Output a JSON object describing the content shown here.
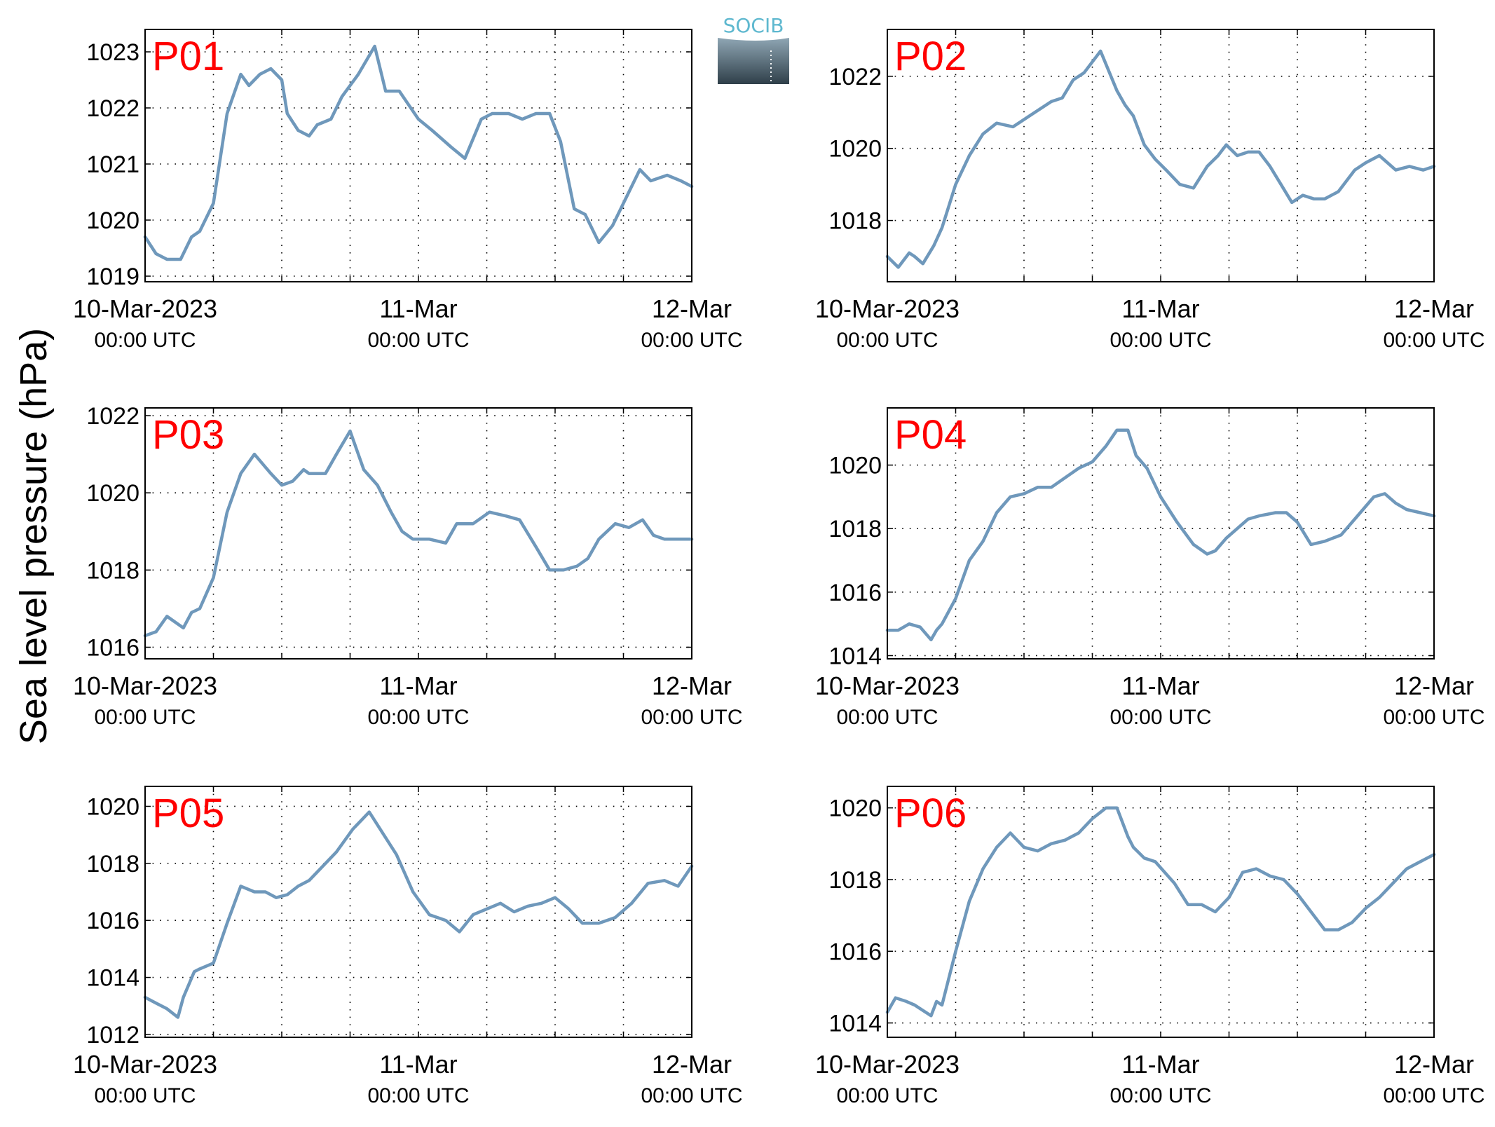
{
  "figure": {
    "ylabel": "Sea level pressure (hPa)",
    "logo_text": "SOCIB",
    "colors": {
      "line": "#6f98bb",
      "panel_label": "#ff0000",
      "axis": "#000000"
    }
  },
  "chart_data": [
    {
      "type": "line",
      "label": "P01",
      "ylim": [
        1018.9,
        1023.4
      ],
      "grid": true,
      "yticks": [
        1019,
        1020,
        1021,
        1022,
        1023
      ],
      "xlim": [
        0,
        2
      ],
      "xticks": [
        {
          "x": 0,
          "date": "10-Mar-2023",
          "time": "00:00 UTC"
        },
        {
          "x": 1,
          "date": "11-Mar",
          "time": "00:00 UTC"
        },
        {
          "x": 2,
          "date": "12-Mar",
          "time": "00:00 UTC"
        }
      ],
      "series": [
        {
          "x": [
            0,
            0.04,
            0.08,
            0.13,
            0.17,
            0.2,
            0.25,
            0.3,
            0.35,
            0.38,
            0.42,
            0.46,
            0.5,
            0.52,
            0.56,
            0.6,
            0.63,
            0.68,
            0.72,
            0.78,
            0.84,
            0.88,
            0.93,
            1.0,
            1.05,
            1.12,
            1.17,
            1.23,
            1.27,
            1.33,
            1.38,
            1.43,
            1.48,
            1.52,
            1.57,
            1.61,
            1.66,
            1.71,
            1.76,
            1.81,
            1.85,
            1.91,
            1.96,
            2.0
          ],
          "values": [
            1019.7,
            1019.4,
            1019.3,
            1019.3,
            1019.7,
            1019.8,
            1020.3,
            1021.9,
            1022.6,
            1022.4,
            1022.6,
            1022.7,
            1022.5,
            1021.9,
            1021.6,
            1021.5,
            1021.7,
            1021.8,
            1022.2,
            1022.6,
            1023.1,
            1022.3,
            1022.3,
            1021.8,
            1021.6,
            1021.3,
            1021.1,
            1021.8,
            1021.9,
            1021.9,
            1021.8,
            1021.9,
            1021.9,
            1021.4,
            1020.2,
            1020.1,
            1019.6,
            1019.9,
            1020.4,
            1020.9,
            1020.7,
            1020.8,
            1020.7,
            1020.6
          ]
        }
      ]
    },
    {
      "type": "line",
      "label": "P02",
      "ylim": [
        1016.3,
        1023.3
      ],
      "grid": true,
      "yticks": [
        1018,
        1020,
        1022
      ],
      "xlim": [
        0,
        2
      ],
      "xticks": [
        {
          "x": 0,
          "date": "10-Mar-2023",
          "time": "00:00 UTC"
        },
        {
          "x": 1,
          "date": "11-Mar",
          "time": "00:00 UTC"
        },
        {
          "x": 2,
          "date": "12-Mar",
          "time": "00:00 UTC"
        }
      ],
      "series": [
        {
          "x": [
            0,
            0.04,
            0.08,
            0.1,
            0.13,
            0.17,
            0.2,
            0.25,
            0.3,
            0.35,
            0.4,
            0.46,
            0.52,
            0.56,
            0.6,
            0.64,
            0.68,
            0.72,
            0.78,
            0.84,
            0.87,
            0.9,
            0.94,
            0.98,
            1.02,
            1.07,
            1.12,
            1.17,
            1.21,
            1.24,
            1.28,
            1.32,
            1.36,
            1.4,
            1.44,
            1.48,
            1.52,
            1.56,
            1.6,
            1.65,
            1.71,
            1.75,
            1.8,
            1.86,
            1.91,
            1.96,
            2.0
          ],
          "values": [
            1017.0,
            1016.7,
            1017.1,
            1017.0,
            1016.8,
            1017.3,
            1017.8,
            1019.0,
            1019.8,
            1020.4,
            1020.7,
            1020.6,
            1020.9,
            1021.1,
            1021.3,
            1021.4,
            1021.9,
            1022.1,
            1022.7,
            1021.6,
            1021.2,
            1020.9,
            1020.1,
            1019.7,
            1019.4,
            1019.0,
            1018.9,
            1019.5,
            1019.8,
            1020.1,
            1019.8,
            1019.9,
            1019.9,
            1019.5,
            1019.0,
            1018.5,
            1018.7,
            1018.6,
            1018.6,
            1018.8,
            1019.4,
            1019.6,
            1019.8,
            1019.4,
            1019.5,
            1019.4,
            1019.5
          ]
        }
      ]
    },
    {
      "type": "line",
      "label": "P03",
      "ylim": [
        1015.7,
        1022.2
      ],
      "grid": true,
      "yticks": [
        1016,
        1018,
        1020,
        1022
      ],
      "xlim": [
        0,
        2
      ],
      "xticks": [
        {
          "x": 0,
          "date": "10-Mar-2023",
          "time": "00:00 UTC"
        },
        {
          "x": 1,
          "date": "11-Mar",
          "time": "00:00 UTC"
        },
        {
          "x": 2,
          "date": "12-Mar",
          "time": "00:00 UTC"
        }
      ],
      "series": [
        {
          "x": [
            0,
            0.04,
            0.08,
            0.1,
            0.14,
            0.17,
            0.2,
            0.25,
            0.3,
            0.35,
            0.4,
            0.46,
            0.5,
            0.54,
            0.58,
            0.6,
            0.66,
            0.7,
            0.75,
            0.8,
            0.85,
            0.9,
            0.94,
            0.98,
            1.04,
            1.1,
            1.14,
            1.2,
            1.26,
            1.32,
            1.37,
            1.43,
            1.48,
            1.53,
            1.58,
            1.62,
            1.66,
            1.72,
            1.77,
            1.82,
            1.86,
            1.9,
            1.95,
            2.0
          ],
          "values": [
            1016.3,
            1016.4,
            1016.8,
            1016.7,
            1016.5,
            1016.9,
            1017.0,
            1017.8,
            1019.5,
            1020.5,
            1021.0,
            1020.5,
            1020.2,
            1020.3,
            1020.6,
            1020.5,
            1020.5,
            1021.0,
            1021.6,
            1020.6,
            1020.2,
            1019.5,
            1019.0,
            1018.8,
            1018.8,
            1018.7,
            1019.2,
            1019.2,
            1019.5,
            1019.4,
            1019.3,
            1018.6,
            1018.0,
            1018.0,
            1018.1,
            1018.3,
            1018.8,
            1019.2,
            1019.1,
            1019.3,
            1018.9,
            1018.8,
            1018.8,
            1018.8
          ]
        }
      ]
    },
    {
      "type": "line",
      "label": "P04",
      "ylim": [
        1013.9,
        1021.8
      ],
      "grid": true,
      "yticks": [
        1014,
        1016,
        1018,
        1020
      ],
      "xlim": [
        0,
        2
      ],
      "xticks": [
        {
          "x": 0,
          "date": "10-Mar-2023",
          "time": "00:00 UTC"
        },
        {
          "x": 1,
          "date": "11-Mar",
          "time": "00:00 UTC"
        },
        {
          "x": 2,
          "date": "12-Mar",
          "time": "00:00 UTC"
        }
      ],
      "series": [
        {
          "x": [
            0,
            0.04,
            0.08,
            0.12,
            0.16,
            0.18,
            0.2,
            0.25,
            0.3,
            0.35,
            0.4,
            0.45,
            0.5,
            0.55,
            0.6,
            0.65,
            0.7,
            0.75,
            0.8,
            0.84,
            0.88,
            0.91,
            0.95,
            1.0,
            1.06,
            1.12,
            1.17,
            1.2,
            1.24,
            1.28,
            1.32,
            1.36,
            1.42,
            1.46,
            1.5,
            1.55,
            1.6,
            1.66,
            1.72,
            1.78,
            1.82,
            1.86,
            1.9,
            1.95,
            2.0
          ],
          "values": [
            1014.8,
            1014.8,
            1015.0,
            1014.9,
            1014.5,
            1014.8,
            1015.0,
            1015.8,
            1017.0,
            1017.6,
            1018.5,
            1019.0,
            1019.1,
            1019.3,
            1019.3,
            1019.6,
            1019.9,
            1020.1,
            1020.6,
            1021.1,
            1021.1,
            1020.3,
            1019.9,
            1019.0,
            1018.2,
            1017.5,
            1017.2,
            1017.3,
            1017.7,
            1018.0,
            1018.3,
            1018.4,
            1018.5,
            1018.5,
            1018.2,
            1017.5,
            1017.6,
            1017.8,
            1018.4,
            1019.0,
            1019.1,
            1018.8,
            1018.6,
            1018.5,
            1018.4
          ]
        }
      ]
    },
    {
      "type": "line",
      "label": "P05",
      "ylim": [
        1011.9,
        1020.7
      ],
      "grid": true,
      "yticks": [
        1012,
        1014,
        1016,
        1018,
        1020
      ],
      "xlim": [
        0,
        2
      ],
      "xticks": [
        {
          "x": 0,
          "date": "10-Mar-2023",
          "time": "00:00 UTC"
        },
        {
          "x": 1,
          "date": "11-Mar",
          "time": "00:00 UTC"
        },
        {
          "x": 2,
          "date": "12-Mar",
          "time": "00:00 UTC"
        }
      ],
      "series": [
        {
          "x": [
            0,
            0.04,
            0.08,
            0.12,
            0.14,
            0.18,
            0.2,
            0.25,
            0.3,
            0.35,
            0.4,
            0.44,
            0.48,
            0.52,
            0.56,
            0.6,
            0.65,
            0.7,
            0.76,
            0.82,
            0.88,
            0.92,
            0.98,
            1.04,
            1.1,
            1.15,
            1.2,
            1.25,
            1.3,
            1.35,
            1.4,
            1.45,
            1.5,
            1.55,
            1.6,
            1.66,
            1.72,
            1.78,
            1.84,
            1.9,
            1.95,
            2.0
          ],
          "values": [
            1013.3,
            1013.1,
            1012.9,
            1012.6,
            1013.3,
            1014.2,
            1014.3,
            1014.5,
            1015.9,
            1017.2,
            1017.0,
            1017.0,
            1016.8,
            1016.9,
            1017.2,
            1017.4,
            1017.9,
            1018.4,
            1019.2,
            1019.8,
            1018.9,
            1018.3,
            1017.0,
            1016.2,
            1016.0,
            1015.6,
            1016.2,
            1016.4,
            1016.6,
            1016.3,
            1016.5,
            1016.6,
            1016.8,
            1016.4,
            1015.9,
            1015.9,
            1016.1,
            1016.6,
            1017.3,
            1017.4,
            1017.2,
            1017.9
          ]
        }
      ]
    },
    {
      "type": "line",
      "label": "P06",
      "ylim": [
        1013.6,
        1020.6
      ],
      "grid": true,
      "yticks": [
        1014,
        1016,
        1018,
        1020
      ],
      "xlim": [
        0,
        2
      ],
      "xticks": [
        {
          "x": 0,
          "date": "10-Mar-2023",
          "time": "00:00 UTC"
        },
        {
          "x": 1,
          "date": "11-Mar",
          "time": "00:00 UTC"
        },
        {
          "x": 2,
          "date": "12-Mar",
          "time": "00:00 UTC"
        }
      ],
      "series": [
        {
          "x": [
            0,
            0.03,
            0.07,
            0.1,
            0.12,
            0.16,
            0.18,
            0.2,
            0.25,
            0.3,
            0.35,
            0.4,
            0.45,
            0.5,
            0.55,
            0.6,
            0.65,
            0.7,
            0.75,
            0.8,
            0.84,
            0.88,
            0.9,
            0.94,
            0.98,
            1.05,
            1.1,
            1.15,
            1.2,
            1.25,
            1.3,
            1.35,
            1.4,
            1.45,
            1.5,
            1.55,
            1.6,
            1.65,
            1.7,
            1.75,
            1.8,
            1.85,
            1.9,
            1.95,
            2.0
          ],
          "values": [
            1014.3,
            1014.7,
            1014.6,
            1014.5,
            1014.4,
            1014.2,
            1014.6,
            1014.5,
            1016.0,
            1017.4,
            1018.3,
            1018.9,
            1019.3,
            1018.9,
            1018.8,
            1019.0,
            1019.1,
            1019.3,
            1019.7,
            1020.0,
            1020.0,
            1019.2,
            1018.9,
            1018.6,
            1018.5,
            1017.9,
            1017.3,
            1017.3,
            1017.1,
            1017.5,
            1018.2,
            1018.3,
            1018.1,
            1018.0,
            1017.6,
            1017.1,
            1016.6,
            1016.6,
            1016.8,
            1017.2,
            1017.5,
            1017.9,
            1018.3,
            1018.5,
            1018.7
          ]
        }
      ]
    }
  ]
}
